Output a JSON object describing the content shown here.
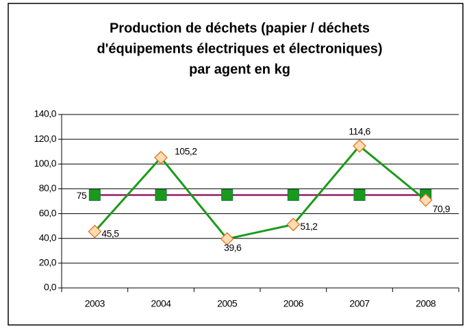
{
  "chart_data": {
    "type": "line",
    "title": [
      "Production de déchets (papier / déchets",
      "d'équipements électriques et électroniques)",
      "par agent en kg"
    ],
    "categories": [
      "2003",
      "2004",
      "2005",
      "2006",
      "2007",
      "2008"
    ],
    "series": [
      {
        "color": "#1a9a1a",
        "marker_fill": "#fddcb4",
        "marker_stroke": "#e06a10",
        "marker": "diamond",
        "values": [
          45.5,
          105.2,
          39.6,
          51.2,
          114.6,
          70.9
        ],
        "value_labels": [
          "45,5",
          "105,2",
          "39,6",
          "51,2",
          "114,6",
          "70,9"
        ]
      },
      {
        "color": "#a33f7f",
        "marker_fill": "#1a9a1a",
        "marker_stroke": "#0f7a3a",
        "marker": "square",
        "values": [
          75,
          75,
          75,
          75,
          75,
          75
        ],
        "value_labels": [
          "75",
          null,
          null,
          null,
          null,
          null
        ]
      }
    ],
    "ylim": [
      0,
      140
    ],
    "yticks": [
      {
        "value": 0,
        "label": "0,0"
      },
      {
        "value": 20,
        "label": "20,0"
      },
      {
        "value": 40,
        "label": "40,0"
      },
      {
        "value": 60,
        "label": "60,0"
      },
      {
        "value": 80,
        "label": "80,0"
      },
      {
        "value": 100,
        "label": "100,0"
      },
      {
        "value": 120,
        "label": "120,0"
      },
      {
        "value": 140,
        "label": "140,0"
      }
    ],
    "grid": true
  }
}
